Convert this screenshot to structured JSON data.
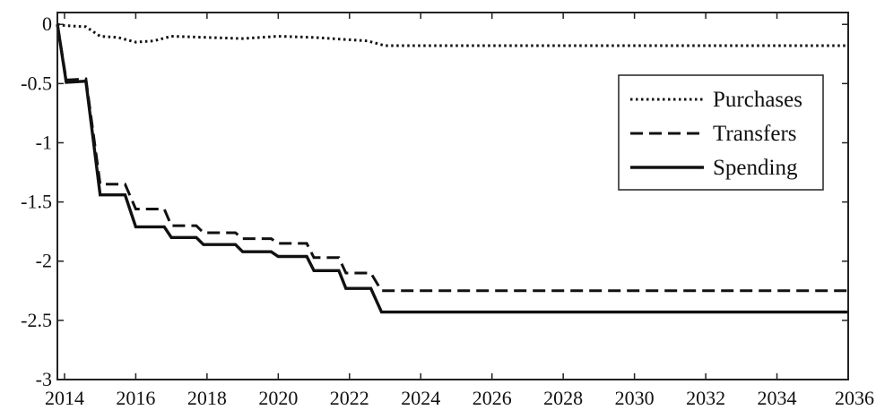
{
  "chart_data": {
    "type": "line",
    "title": "",
    "xlabel": "",
    "ylabel": "",
    "xlim": [
      2013.8,
      2036
    ],
    "ylim": [
      -3,
      0.1
    ],
    "x_ticks": [
      "2014",
      "2016",
      "2018",
      "2020",
      "2022",
      "2024",
      "2026",
      "2028",
      "2030",
      "2032",
      "2034",
      "2036"
    ],
    "y_ticks": [
      "0",
      "-0.5",
      "-1",
      "-1.5",
      "-2",
      "-2.5",
      "-3"
    ],
    "grid": false,
    "legend_position": "upper-right",
    "series": [
      {
        "name": "Purchases",
        "style": "dotted",
        "color": "#111111",
        "points": [
          [
            2013.8,
            0
          ],
          [
            2014,
            -0.01
          ],
          [
            2014.6,
            -0.02
          ],
          [
            2015,
            -0.1
          ],
          [
            2015.5,
            -0.11
          ],
          [
            2016,
            -0.15
          ],
          [
            2016.5,
            -0.14
          ],
          [
            2017,
            -0.1
          ],
          [
            2018,
            -0.11
          ],
          [
            2019,
            -0.12
          ],
          [
            2020,
            -0.1
          ],
          [
            2021,
            -0.11
          ],
          [
            2022,
            -0.13
          ],
          [
            2022.5,
            -0.14
          ],
          [
            2023,
            -0.18
          ],
          [
            2036,
            -0.18
          ]
        ]
      },
      {
        "name": "Transfers",
        "style": "dashed",
        "color": "#111111",
        "points": [
          [
            2013.8,
            0
          ],
          [
            2014.05,
            -0.47
          ],
          [
            2014.6,
            -0.46
          ],
          [
            2015,
            -1.35
          ],
          [
            2015.7,
            -1.35
          ],
          [
            2016,
            -1.56
          ],
          [
            2016.8,
            -1.56
          ],
          [
            2017,
            -1.7
          ],
          [
            2017.7,
            -1.7
          ],
          [
            2017.9,
            -1.76
          ],
          [
            2018.8,
            -1.76
          ],
          [
            2019,
            -1.81
          ],
          [
            2019.8,
            -1.81
          ],
          [
            2020,
            -1.85
          ],
          [
            2020.8,
            -1.85
          ],
          [
            2021,
            -1.97
          ],
          [
            2021.7,
            -1.97
          ],
          [
            2021.9,
            -2.1
          ],
          [
            2022.6,
            -2.1
          ],
          [
            2022.9,
            -2.25
          ],
          [
            2036,
            -2.25
          ]
        ]
      },
      {
        "name": "Spending",
        "style": "solid",
        "color": "#111111",
        "points": [
          [
            2013.8,
            0
          ],
          [
            2014.05,
            -0.49
          ],
          [
            2014.6,
            -0.48
          ],
          [
            2015,
            -1.44
          ],
          [
            2015.7,
            -1.44
          ],
          [
            2016,
            -1.71
          ],
          [
            2016.8,
            -1.71
          ],
          [
            2017,
            -1.8
          ],
          [
            2017.7,
            -1.8
          ],
          [
            2017.9,
            -1.86
          ],
          [
            2018.8,
            -1.86
          ],
          [
            2019,
            -1.92
          ],
          [
            2019.8,
            -1.92
          ],
          [
            2020,
            -1.96
          ],
          [
            2020.8,
            -1.96
          ],
          [
            2021,
            -2.08
          ],
          [
            2021.7,
            -2.08
          ],
          [
            2021.9,
            -2.23
          ],
          [
            2022.6,
            -2.23
          ],
          [
            2022.9,
            -2.43
          ],
          [
            2036,
            -2.43
          ]
        ]
      }
    ]
  }
}
